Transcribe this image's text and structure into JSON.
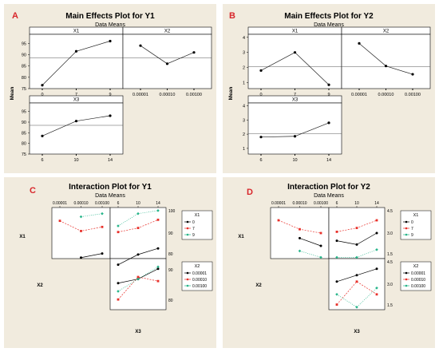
{
  "chart_data": [
    {
      "type": "line",
      "letter": "A",
      "title": "Main Effects Plot for Y1",
      "subtitle": "Data Means",
      "ylabel": "Mean",
      "ylim": [
        75,
        99
      ],
      "yticks": [
        "75",
        "80",
        "85",
        "90",
        "95"
      ],
      "grand_mean": 88.5,
      "panels": [
        {
          "name": "X1",
          "categories": [
            "0",
            "7",
            "9"
          ],
          "values": [
            76.5,
            91.5,
            96.0
          ]
        },
        {
          "name": "X2",
          "categories": [
            "0.00001",
            "0.00010",
            "0.00100"
          ],
          "values": [
            94.0,
            86.0,
            91.0
          ]
        },
        {
          "name": "X3",
          "categories": [
            "6",
            "10",
            "14"
          ],
          "values": [
            83.5,
            90.5,
            93.0
          ]
        }
      ]
    },
    {
      "type": "line",
      "letter": "B",
      "title": "Main Effects Plot for Y2",
      "subtitle": "Data Means",
      "ylabel": "Mean",
      "ylim": [
        0.6,
        4.2
      ],
      "yticks": [
        "1",
        "2",
        "3",
        "4"
      ],
      "grand_mean": 2.05,
      "panels": [
        {
          "name": "X1",
          "categories": [
            "0",
            "7",
            "9"
          ],
          "values": [
            1.8,
            3.0,
            0.85
          ]
        },
        {
          "name": "X2",
          "categories": [
            "0.00001",
            "0.00010",
            "0.00100"
          ],
          "values": [
            3.6,
            2.1,
            1.55
          ]
        },
        {
          "name": "X3",
          "categories": [
            "6",
            "10",
            "14"
          ],
          "values": [
            1.8,
            1.85,
            2.8
          ]
        }
      ]
    },
    {
      "type": "line",
      "letter": "C",
      "title": "Interaction Plot for Y1",
      "subtitle": "Data Means",
      "factors": [
        "X1",
        "X2",
        "X3"
      ],
      "top_ticks": [
        "0.00001",
        "0.00010",
        "0.00100",
        "6",
        "10",
        "14"
      ],
      "right_ticks_top": [
        "100",
        "90",
        "80"
      ],
      "right_ticks_bottom": [
        "90",
        "80"
      ],
      "legends": [
        {
          "title": "X1",
          "entries": [
            "0",
            "7",
            "9"
          ],
          "colors": [
            "#000000",
            "#e8302a",
            "#27b58a"
          ]
        },
        {
          "title": "X2",
          "entries": [
            "0.00001",
            "0.00010",
            "0.00100"
          ],
          "colors": [
            "#000000",
            "#e8302a",
            "#27b58a"
          ]
        }
      ],
      "ylim": [
        75,
        100
      ],
      "cells": [
        {
          "row": "X1",
          "col": "X2",
          "series": [
            {
              "values": [
                null,
                75.5,
                77.5
              ]
            },
            {
              "values": [
                93.5,
                88.5,
                90.5
              ]
            },
            {
              "values": [
                null,
                95.5,
                97
              ]
            }
          ]
        },
        {
          "row": "X1",
          "col": "X3",
          "series": [
            {
              "values": [
                72,
                77,
                80
              ]
            },
            {
              "values": [
                88,
                90,
                94
              ]
            },
            {
              "values": [
                91,
                97,
                98.5
              ]
            }
          ]
        },
        {
          "row": "X2",
          "col": "X3",
          "series": [
            {
              "values": [
                88,
                90,
                95
              ]
            },
            {
              "values": [
                80,
                91,
                89
              ]
            },
            {
              "values": [
                84,
                90,
                96
              ]
            }
          ]
        }
      ]
    },
    {
      "type": "line",
      "letter": "D",
      "title": "Interaction Plot for Y2",
      "subtitle": "Data Means",
      "factors": [
        "X1",
        "X2",
        "X3"
      ],
      "top_ticks": [
        "0.00001",
        "0.00010",
        "0.00100",
        "6",
        "10",
        "14"
      ],
      "right_ticks_top": [
        "4.5",
        "3.0",
        "1.5"
      ],
      "right_ticks_bottom": [
        "4.5",
        "3.0",
        "1.5"
      ],
      "legends": [
        {
          "title": "X1",
          "entries": [
            "0",
            "7",
            "9"
          ],
          "colors": [
            "#000000",
            "#e8302a",
            "#27b58a"
          ]
        },
        {
          "title": "X2",
          "entries": [
            "0.00001",
            "0.00010",
            "0.00100"
          ],
          "colors": [
            "#000000",
            "#e8302a",
            "#27b58a"
          ]
        }
      ],
      "ylim": [
        0.8,
        4.8
      ],
      "cells": [
        {
          "row": "X1",
          "col": "X2",
          "series": [
            {
              "values": [
                null,
                2.4,
                1.8
              ]
            },
            {
              "values": [
                3.8,
                3.1,
                2.8
              ]
            },
            {
              "values": [
                null,
                1.4,
                0.9
              ]
            }
          ]
        },
        {
          "row": "X1",
          "col": "X3",
          "series": [
            {
              "values": [
                2.2,
                1.9,
                2.8
              ]
            },
            {
              "values": [
                2.9,
                3.2,
                3.8
              ]
            },
            {
              "values": [
                0.9,
                0.9,
                1.5
              ]
            }
          ]
        },
        {
          "row": "X2",
          "col": "X3",
          "series": [
            {
              "values": [
                3.0,
                3.5,
                4.0
              ]
            },
            {
              "values": [
                1.2,
                3.0,
                2.0
              ]
            },
            {
              "values": [
                2.0,
                1.0,
                2.5
              ]
            }
          ]
        }
      ]
    }
  ]
}
